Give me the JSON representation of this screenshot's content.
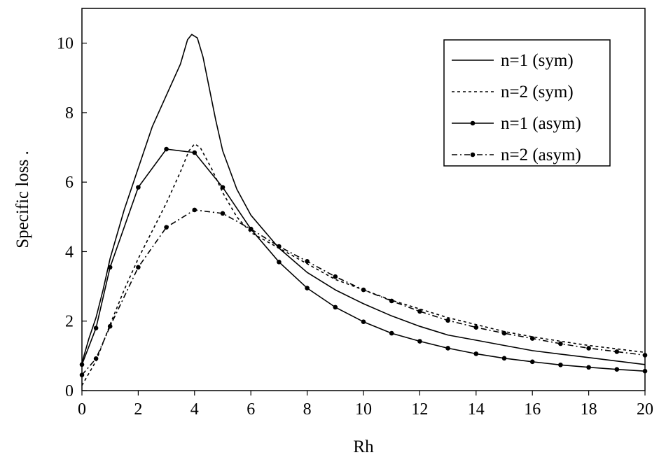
{
  "chart_data": {
    "type": "line",
    "title": "",
    "xlabel": "Rh",
    "ylabel": "Specific loss  .",
    "xlim": [
      0,
      20
    ],
    "ylim": [
      0,
      11
    ],
    "xticks": [
      0,
      2,
      4,
      6,
      8,
      10,
      12,
      14,
      16,
      18,
      20
    ],
    "yticks": [
      0,
      2,
      4,
      6,
      8,
      10
    ],
    "grid": false,
    "legend_position": "top-right",
    "series": [
      {
        "name": "n=1 (sym)",
        "line_style": "solid",
        "markers": false,
        "points": [
          [
            0,
            0.8
          ],
          [
            0.25,
            1.5
          ],
          [
            0.5,
            2.1
          ],
          [
            0.75,
            2.9
          ],
          [
            1,
            3.8
          ],
          [
            1.5,
            5.2
          ],
          [
            2,
            6.4
          ],
          [
            2.5,
            7.6
          ],
          [
            3,
            8.5
          ],
          [
            3.5,
            9.4
          ],
          [
            3.75,
            10.1
          ],
          [
            3.9,
            10.25
          ],
          [
            4.1,
            10.15
          ],
          [
            4.3,
            9.6
          ],
          [
            4.5,
            8.8
          ],
          [
            4.75,
            7.8
          ],
          [
            5,
            6.9
          ],
          [
            5.5,
            5.8
          ],
          [
            6,
            5.05
          ],
          [
            7,
            4.1
          ],
          [
            8,
            3.4
          ],
          [
            9,
            2.9
          ],
          [
            10,
            2.5
          ],
          [
            11,
            2.15
          ],
          [
            12,
            1.85
          ],
          [
            13,
            1.6
          ],
          [
            14,
            1.45
          ],
          [
            15,
            1.3
          ],
          [
            16,
            1.15
          ],
          [
            17,
            1.05
          ],
          [
            18,
            0.95
          ],
          [
            19,
            0.85
          ],
          [
            20,
            0.75
          ]
        ]
      },
      {
        "name": "n=2 (sym)",
        "line_style": "dashed",
        "markers": false,
        "points": [
          [
            0,
            0.15
          ],
          [
            0.5,
            0.85
          ],
          [
            1,
            1.9
          ],
          [
            1.5,
            2.9
          ],
          [
            2,
            3.8
          ],
          [
            2.5,
            4.6
          ],
          [
            3,
            5.4
          ],
          [
            3.5,
            6.3
          ],
          [
            3.8,
            6.9
          ],
          [
            4,
            7.1
          ],
          [
            4.2,
            7.0
          ],
          [
            4.6,
            6.4
          ],
          [
            5,
            5.7
          ],
          [
            5.5,
            5.0
          ],
          [
            6,
            4.55
          ],
          [
            7,
            4.1
          ],
          [
            8,
            3.65
          ],
          [
            9,
            3.2
          ],
          [
            10,
            2.9
          ],
          [
            11,
            2.6
          ],
          [
            12,
            2.35
          ],
          [
            13,
            2.1
          ],
          [
            14,
            1.9
          ],
          [
            15,
            1.7
          ],
          [
            16,
            1.55
          ],
          [
            17,
            1.42
          ],
          [
            18,
            1.3
          ],
          [
            19,
            1.2
          ],
          [
            20,
            1.1
          ]
        ]
      },
      {
        "name": "n=1 (asym)",
        "line_style": "solid",
        "markers": true,
        "points": [
          [
            0,
            0.75
          ],
          [
            0.5,
            1.8
          ],
          [
            1,
            3.55
          ],
          [
            2,
            5.85
          ],
          [
            3,
            6.95
          ],
          [
            4,
            6.85
          ],
          [
            5,
            5.85
          ],
          [
            6,
            4.65
          ],
          [
            7,
            3.7
          ],
          [
            8,
            2.95
          ],
          [
            9,
            2.4
          ],
          [
            10,
            1.98
          ],
          [
            11,
            1.65
          ],
          [
            12,
            1.42
          ],
          [
            13,
            1.22
          ],
          [
            14,
            1.06
          ],
          [
            15,
            0.93
          ],
          [
            16,
            0.83
          ],
          [
            17,
            0.74
          ],
          [
            18,
            0.67
          ],
          [
            19,
            0.61
          ],
          [
            20,
            0.56
          ]
        ]
      },
      {
        "name": "n=2 (asym)",
        "line_style": "dash-dot",
        "markers": true,
        "points": [
          [
            0,
            0.45
          ],
          [
            0.5,
            0.92
          ],
          [
            1,
            1.85
          ],
          [
            2,
            3.55
          ],
          [
            3,
            4.7
          ],
          [
            4,
            5.2
          ],
          [
            5,
            5.1
          ],
          [
            6,
            4.65
          ],
          [
            7,
            4.15
          ],
          [
            8,
            3.72
          ],
          [
            9,
            3.28
          ],
          [
            10,
            2.9
          ],
          [
            11,
            2.58
          ],
          [
            12,
            2.28
          ],
          [
            13,
            2.02
          ],
          [
            14,
            1.82
          ],
          [
            15,
            1.65
          ],
          [
            16,
            1.5
          ],
          [
            17,
            1.35
          ],
          [
            18,
            1.22
          ],
          [
            19,
            1.12
          ],
          [
            20,
            1.02
          ]
        ]
      }
    ]
  }
}
